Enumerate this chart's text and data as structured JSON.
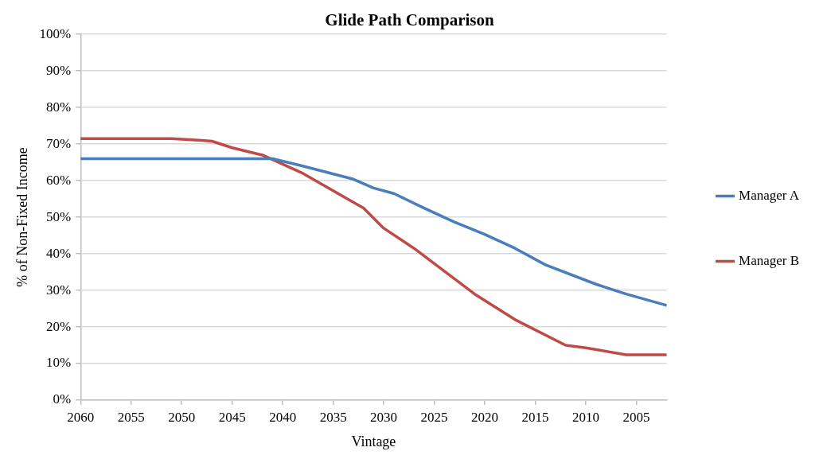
{
  "chart_data": {
    "type": "line",
    "title": "Glide Path Comparison",
    "xlabel": "Vintage",
    "ylabel": "% of Non-Fixed Income",
    "xlim": [
      2060,
      2002
    ],
    "xticks": [
      2060,
      2055,
      2050,
      2045,
      2040,
      2035,
      2030,
      2025,
      2020,
      2015,
      2010,
      2005
    ],
    "ylim": [
      0,
      100
    ],
    "yticks": [
      {
        "value": 0,
        "label": "0%"
      },
      {
        "value": 10,
        "label": "10%"
      },
      {
        "value": 20,
        "label": "20%"
      },
      {
        "value": 30,
        "label": "30%"
      },
      {
        "value": 40,
        "label": "40%"
      },
      {
        "value": 50,
        "label": "50%"
      },
      {
        "value": 60,
        "label": "60%"
      },
      {
        "value": 70,
        "label": "70%"
      },
      {
        "value": 80,
        "label": "80%"
      },
      {
        "value": 90,
        "label": "90%"
      },
      {
        "value": 100,
        "label": "100%"
      }
    ],
    "grid": "y",
    "legend": "right",
    "marker": "none",
    "line_style": "solid",
    "series": [
      {
        "name": "Manager A",
        "color": "#4a7ebb",
        "x": [
          2060,
          2041,
          2038,
          2033,
          2031,
          2029,
          2026,
          2023,
          2020,
          2017,
          2014,
          2009,
          2006,
          2002
        ],
        "values": [
          66,
          66,
          64,
          60.4,
          58,
          56.5,
          52.5,
          48.7,
          45.3,
          41.5,
          37,
          31.7,
          29,
          25.9
        ]
      },
      {
        "name": "Manager B",
        "color": "#be4b48",
        "x": [
          2060,
          2051,
          2048,
          2047,
          2045,
          2042,
          2038,
          2032,
          2030,
          2027,
          2021,
          2017,
          2012,
          2010,
          2006,
          2002
        ],
        "values": [
          71.5,
          71.5,
          71,
          70.8,
          69,
          67,
          62,
          52.5,
          47,
          41.5,
          29,
          22,
          15,
          14.3,
          12.4,
          12.4
        ]
      }
    ]
  }
}
